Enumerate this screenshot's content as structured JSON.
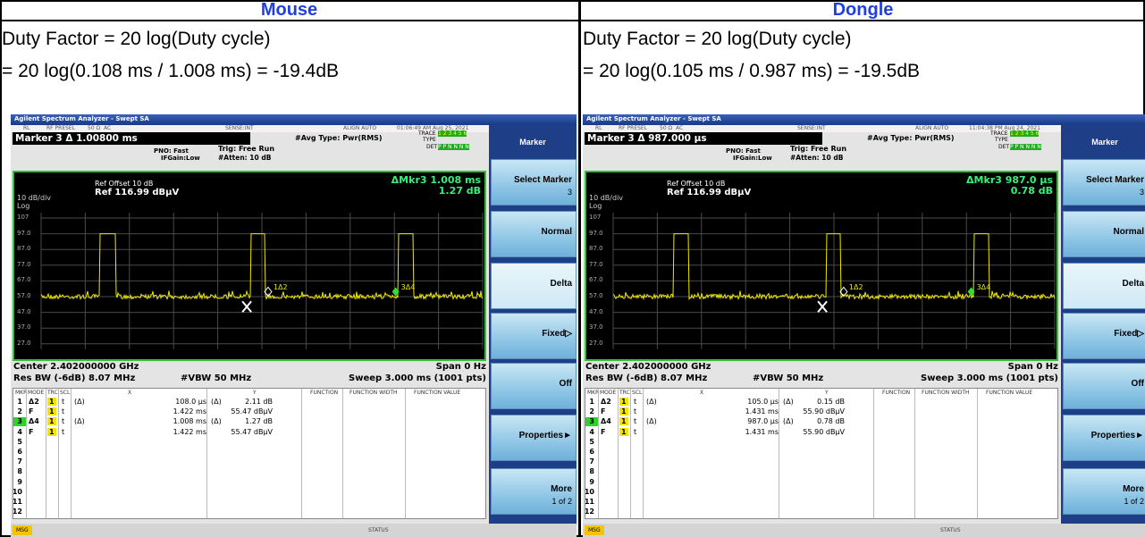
{
  "columns": [
    {
      "heading": "Mouse",
      "duty_formula": "Duty Factor = 20 log(Duty cycle)",
      "duty_result": "= 20 log(0.108 ms / 1.008 ms) = -19.4dB",
      "analyzer": {
        "title": "Agilent Spectrum Analyzer - Swept SA",
        "status_items": [
          "RL",
          "RF PRESEL",
          "50 Ω",
          "AC",
          "SENSE:INT",
          "ALIGN AUTO",
          "01:06:49 AM Aug 25, 2021"
        ],
        "readout": "Marker 3 Δ  1.00800 ms",
        "pno": "PNO: Fast",
        "ifgain": "IFGain:Low",
        "trig": "Trig: Free Run",
        "atten": "#Atten: 10 dB",
        "avg": "#Avg Type: Pwr(RMS)",
        "trace_label": "TRACE",
        "type_label": "TYPE",
        "det_label": "DET",
        "trace_digits": "1 2 3 4 5 6",
        "det_values": "P P N N N N",
        "ref_offset": "Ref Offset 10 dB",
        "ref_level": "Ref 116.99 dBµV",
        "scale": "10 dB/div",
        "scale_type": "Log",
        "mkr_delta": "ΔMkr3 1.008 ms",
        "mkr_value": "1.27 dB",
        "y_labels": [
          "107",
          "97.0",
          "87.0",
          "77.0",
          "67.0",
          "57.0",
          "47.0",
          "37.0",
          "27.0"
        ],
        "marker_labels": [
          "1Δ2",
          "3Δ4"
        ],
        "center": "Center 2.402000000 GHz",
        "span": "Span 0 Hz",
        "rbw": "Res BW (-6dB) 8.07 MHz",
        "vbw": "#VBW 50 MHz",
        "sweep": "Sweep  3.000 ms (1001 pts)",
        "table_headers": [
          "MKR",
          "MODE",
          "TRC",
          "SCL",
          "X",
          "Y",
          "FUNCTION",
          "FUNCTION WIDTH",
          "FUNCTION VALUE"
        ],
        "table_rows": [
          {
            "n": "1",
            "mode": "Δ2",
            "trc": "1",
            "scl": "t",
            "xref": "(Δ)",
            "x": "108.0 µs",
            "yref": "(Δ)",
            "y": "2.11 dB"
          },
          {
            "n": "2",
            "mode": "F",
            "trc": "1",
            "scl": "t",
            "x": "1.422 ms",
            "y": "55.47 dBµV"
          },
          {
            "n": "3",
            "mode": "Δ4",
            "trc": "1",
            "scl": "t",
            "xref": "(Δ)",
            "x": "1.008 ms",
            "yref": "(Δ)",
            "y": "1.27 dB"
          },
          {
            "n": "4",
            "mode": "F",
            "trc": "1",
            "scl": "t",
            "x": "1.422 ms",
            "y": "55.47 dBµV"
          },
          {
            "n": "5"
          },
          {
            "n": "6"
          },
          {
            "n": "7"
          },
          {
            "n": "8"
          },
          {
            "n": "9"
          },
          {
            "n": "10"
          },
          {
            "n": "11"
          },
          {
            "n": "12"
          }
        ],
        "softkey_title": "Marker",
        "softkeys": [
          {
            "label": "Select Marker",
            "sub": "3"
          },
          {
            "label": "Normal"
          },
          {
            "label": "Delta"
          },
          {
            "label": "Fixed▷"
          },
          {
            "label": "Off"
          },
          {
            "label": "Properties►"
          },
          {
            "label": "More",
            "sub": "1 of 2"
          }
        ],
        "msg": "MSG",
        "status": "STATUS"
      }
    },
    {
      "heading": "Dongle",
      "duty_formula": "Duty Factor = 20 log(Duty cycle)",
      "duty_result": "= 20 log(0.105 ms / 0.987 ms) = -19.5dB",
      "analyzer": {
        "title": "Agilent Spectrum Analyzer - Swept SA",
        "status_items": [
          "RL",
          "RF PRESEL",
          "50 Ω",
          "AC",
          "SENSE:INT",
          "ALIGN AUTO",
          "11:04:38 PM Aug 24, 2021"
        ],
        "readout": "Marker 3 Δ  987.000 µs",
        "pno": "PNO: Fast",
        "ifgain": "IFGain:Low",
        "trig": "Trig: Free Run",
        "atten": "#Atten: 10 dB",
        "avg": "#Avg Type: Pwr(RMS)",
        "trace_label": "TRACE",
        "type_label": "TYPE",
        "det_label": "DET",
        "trace_digits": "1 2 3 4 5 6",
        "det_values": "P P N N N N",
        "ref_offset": "Ref Offset 10 dB",
        "ref_level": "Ref 116.99 dBµV",
        "scale": "10 dB/div",
        "scale_type": "Log",
        "mkr_delta": "ΔMkr3 987.0 µs",
        "mkr_value": "0.78 dB",
        "y_labels": [
          "107",
          "97.0",
          "87.0",
          "77.0",
          "67.0",
          "57.0",
          "47.0",
          "37.0",
          "27.0"
        ],
        "marker_labels": [
          "1Δ2",
          "3Δ4"
        ],
        "center": "Center 2.402000000 GHz",
        "span": "Span 0 Hz",
        "rbw": "Res BW (-6dB) 8.07 MHz",
        "vbw": "#VBW 50 MHz",
        "sweep": "Sweep  3.000 ms (1001 pts)",
        "table_headers": [
          "MKR",
          "MODE",
          "TRC",
          "SCL",
          "X",
          "Y",
          "FUNCTION",
          "FUNCTION WIDTH",
          "FUNCTION VALUE"
        ],
        "table_rows": [
          {
            "n": "1",
            "mode": "Δ2",
            "trc": "1",
            "scl": "t",
            "xref": "(Δ)",
            "x": "105.0 µs",
            "yref": "(Δ)",
            "y": "0.15 dB"
          },
          {
            "n": "2",
            "mode": "F",
            "trc": "1",
            "scl": "t",
            "x": "1.431 ms",
            "y": "55.90 dBµV"
          },
          {
            "n": "3",
            "mode": "Δ4",
            "trc": "1",
            "scl": "t",
            "xref": "(Δ)",
            "x": "987.0 µs",
            "yref": "(Δ)",
            "y": "0.78 dB"
          },
          {
            "n": "4",
            "mode": "F",
            "trc": "1",
            "scl": "t",
            "x": "1.431 ms",
            "y": "55.90 dBµV"
          },
          {
            "n": "5"
          },
          {
            "n": "6"
          },
          {
            "n": "7"
          },
          {
            "n": "8"
          },
          {
            "n": "9"
          },
          {
            "n": "10"
          },
          {
            "n": "11"
          },
          {
            "n": "12"
          }
        ],
        "softkey_title": "Marker",
        "softkeys": [
          {
            "label": "Select Marker",
            "sub": "3"
          },
          {
            "label": "Normal"
          },
          {
            "label": "Delta"
          },
          {
            "label": "Fixed▷"
          },
          {
            "label": "Off"
          },
          {
            "label": "Properties►"
          },
          {
            "label": "More",
            "sub": "1 of 2"
          }
        ],
        "msg": "MSG",
        "status": "STATUS"
      }
    }
  ]
}
